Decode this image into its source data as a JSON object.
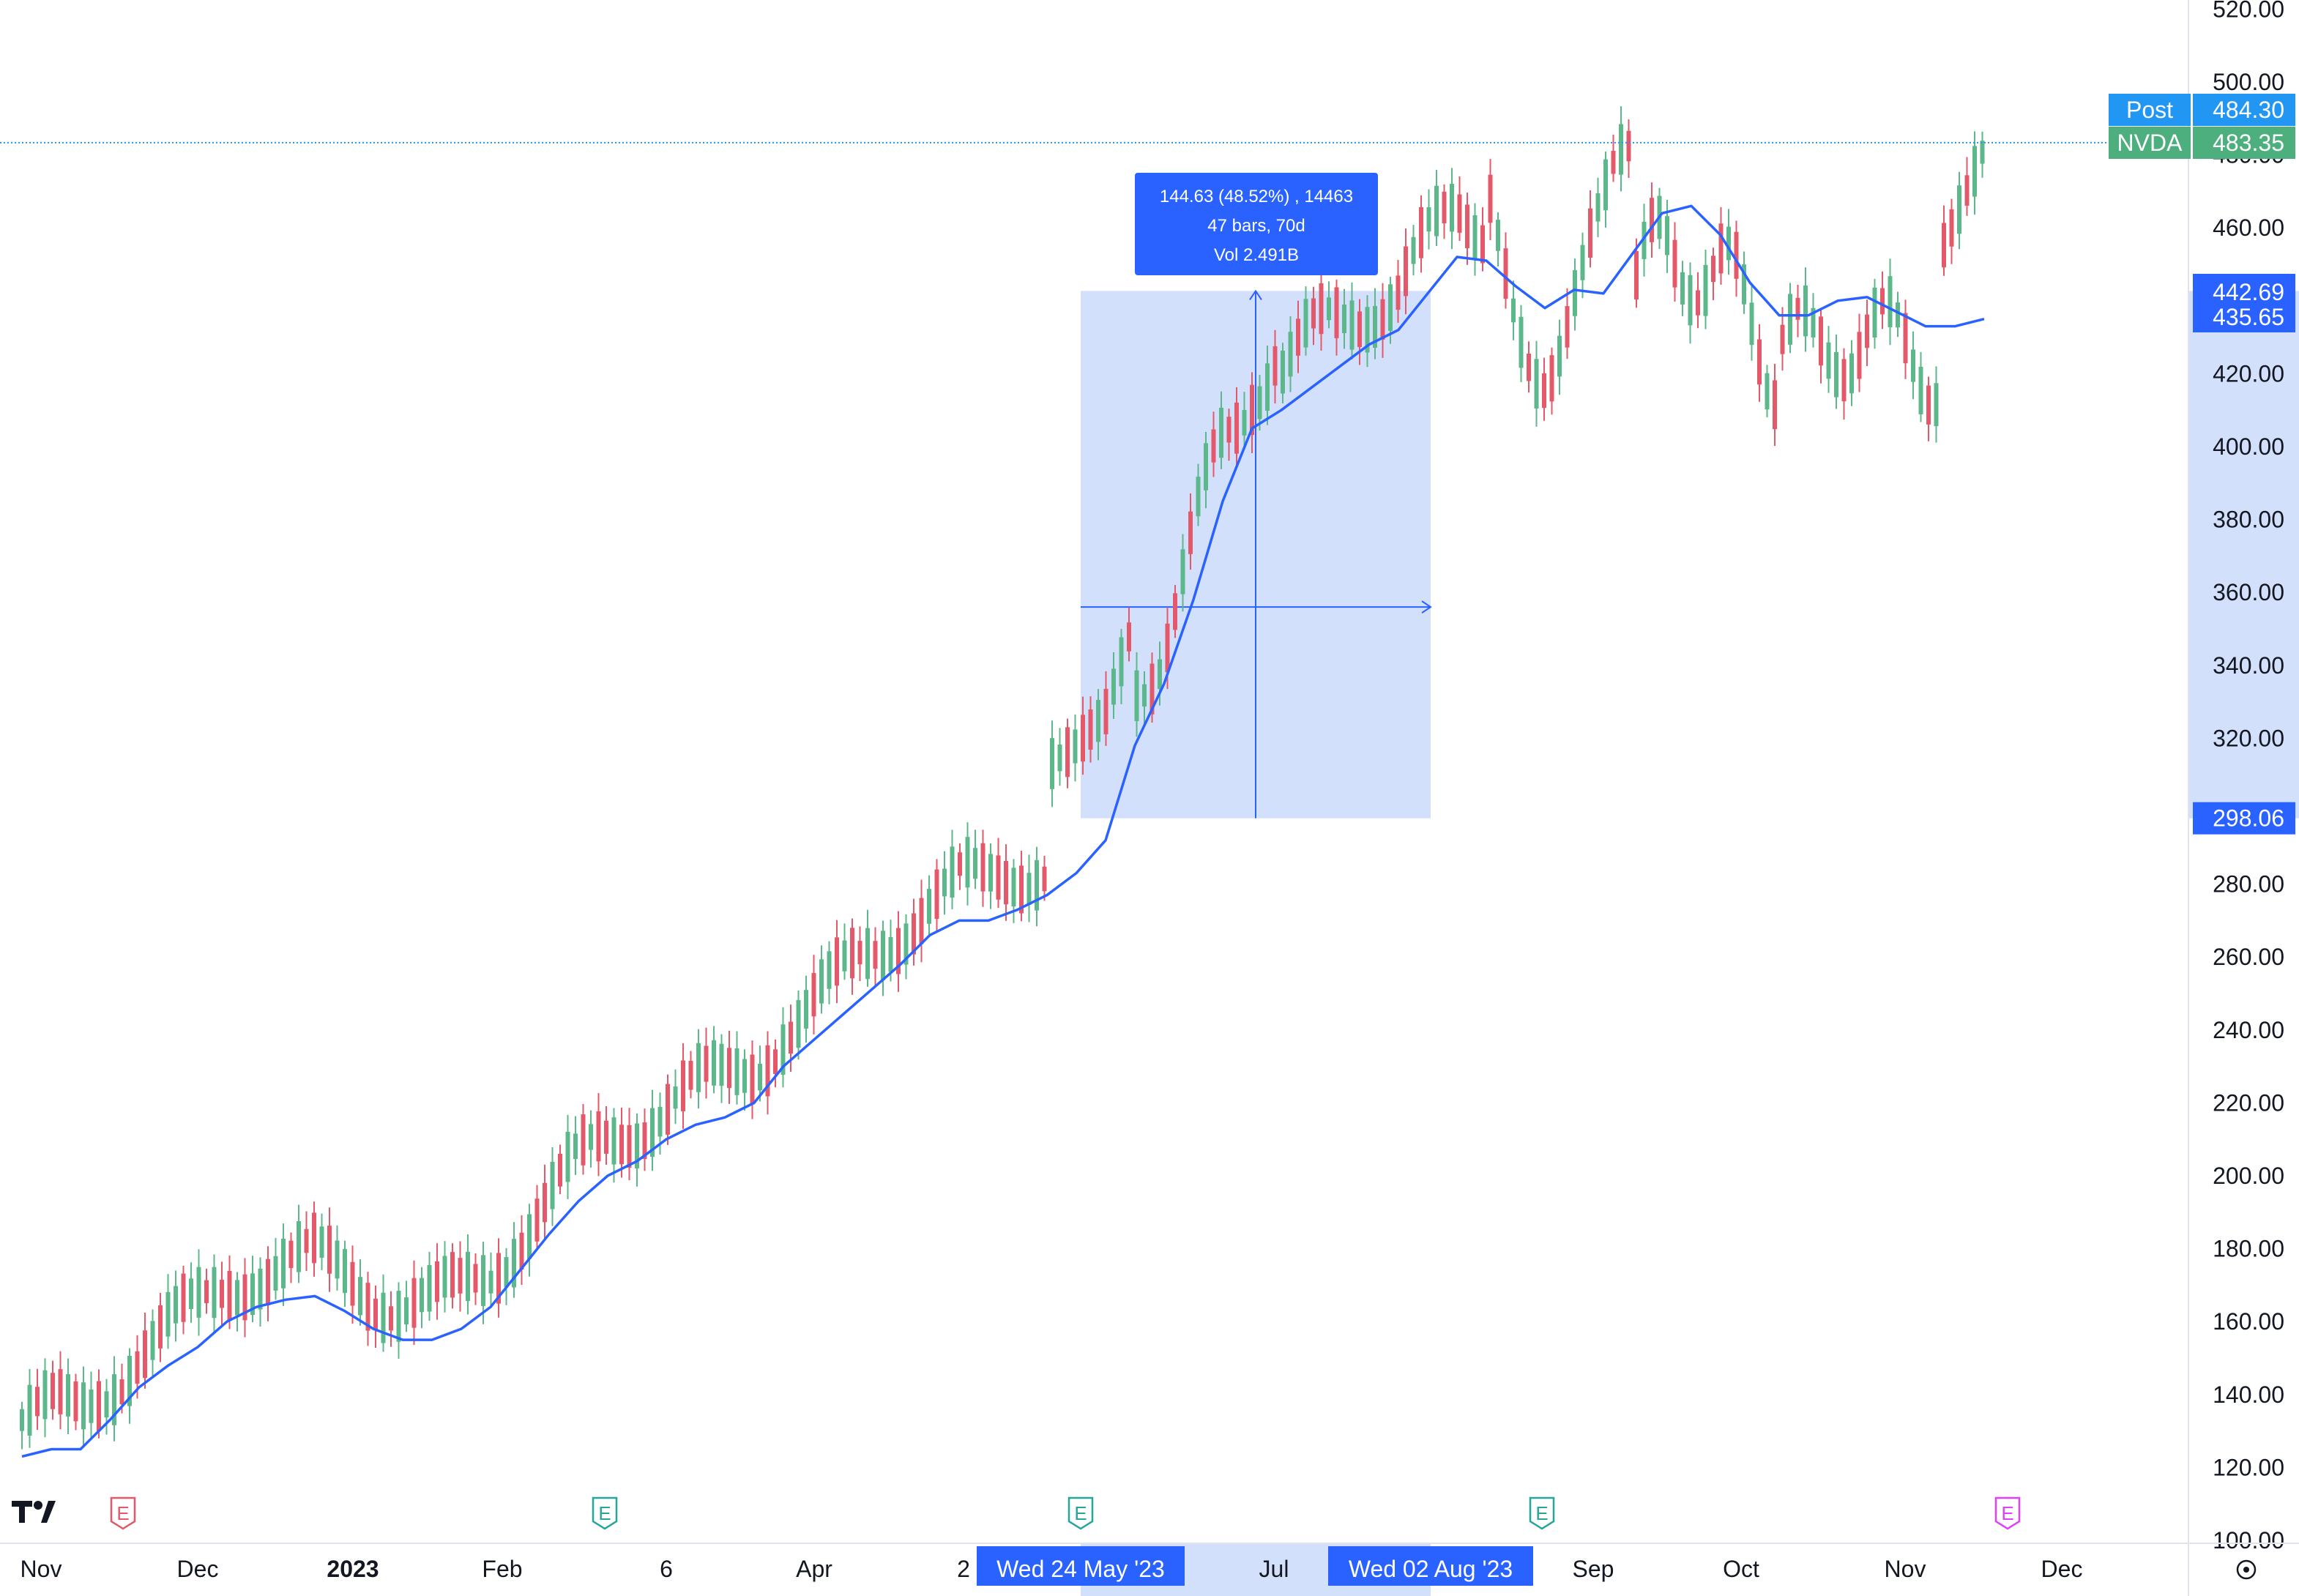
{
  "chart_data": {
    "type": "candlestick",
    "symbol": "NVDA",
    "ylim": [
      100,
      520
    ],
    "y_ticks": [
      "520.00",
      "500.00",
      "480.00",
      "460.00",
      "440.00",
      "420.00",
      "400.00",
      "380.00",
      "360.00",
      "340.00",
      "320.00",
      "300.00",
      "280.00",
      "260.00",
      "240.00",
      "220.00",
      "200.00",
      "180.00",
      "160.00",
      "140.00",
      "120.00",
      "100.00"
    ],
    "x_labels": [
      "Nov",
      "Dec",
      "2023",
      "Feb",
      "6",
      "Apr",
      "2",
      "Jul",
      "Sep",
      "Oct",
      "Nov",
      "Dec"
    ],
    "moving_average": [
      [
        0,
        123
      ],
      [
        20,
        125
      ],
      [
        40,
        125
      ],
      [
        60,
        133
      ],
      [
        80,
        142
      ],
      [
        100,
        148
      ],
      [
        120,
        153
      ],
      [
        140,
        160
      ],
      [
        160,
        164
      ],
      [
        180,
        166
      ],
      [
        200,
        167
      ],
      [
        220,
        163
      ],
      [
        240,
        158
      ],
      [
        260,
        155
      ],
      [
        280,
        155
      ],
      [
        300,
        158
      ],
      [
        320,
        164
      ],
      [
        340,
        174
      ],
      [
        360,
        184
      ],
      [
        380,
        193
      ],
      [
        400,
        200
      ],
      [
        420,
        204
      ],
      [
        440,
        210
      ],
      [
        460,
        214
      ],
      [
        480,
        216
      ],
      [
        500,
        220
      ],
      [
        520,
        230
      ],
      [
        540,
        237
      ],
      [
        560,
        244
      ],
      [
        580,
        251
      ],
      [
        600,
        258
      ],
      [
        620,
        266
      ],
      [
        640,
        270
      ],
      [
        660,
        270
      ],
      [
        680,
        273
      ],
      [
        700,
        277
      ],
      [
        720,
        283
      ],
      [
        740,
        292
      ],
      [
        760,
        318
      ],
      [
        780,
        335
      ],
      [
        800,
        358
      ],
      [
        820,
        385
      ],
      [
        840,
        405
      ],
      [
        860,
        410
      ],
      [
        880,
        416
      ],
      [
        900,
        422
      ],
      [
        920,
        428
      ],
      [
        940,
        432
      ],
      [
        960,
        442
      ],
      [
        980,
        452
      ],
      [
        1000,
        451
      ],
      [
        1020,
        444
      ],
      [
        1040,
        438
      ],
      [
        1060,
        443
      ],
      [
        1080,
        442
      ],
      [
        1100,
        453
      ],
      [
        1120,
        464
      ],
      [
        1140,
        466
      ],
      [
        1160,
        458
      ],
      [
        1180,
        445
      ],
      [
        1200,
        436
      ],
      [
        1220,
        436
      ],
      [
        1240,
        440
      ],
      [
        1260,
        441
      ],
      [
        1280,
        437
      ],
      [
        1300,
        433
      ],
      [
        1320,
        433
      ],
      [
        1340,
        435
      ]
    ],
    "measure": {
      "date_start": "Wed 24 May '23",
      "date_end": "Wed 02 Aug '23",
      "price_low": "298.06",
      "price_high": "442.69",
      "change": "144.63 (48.52%) , 14463",
      "bars": "47 bars, 70d",
      "volume": "Vol 2.491B"
    },
    "last_price": {
      "label": "NVDA",
      "value": "483.35"
    },
    "post_price": {
      "label": "Post",
      "value": "484.30"
    },
    "ma_value": "435.65",
    "colors": {
      "up": "#26a69a",
      "up_body": "#5cb88b",
      "down": "#e4596a",
      "ma": "#2962ff",
      "measure_fill": "#d3e0fb",
      "accent": "#2962ff",
      "last": "#4caf7d",
      "post": "#2196f3"
    }
  },
  "logo_text": "TV",
  "earnings_markers": [
    {
      "label": "E",
      "color": "#e4596a"
    },
    {
      "label": "E",
      "color": "#26a69a"
    },
    {
      "label": "E",
      "color": "#26a69a"
    },
    {
      "label": "E",
      "color": "#26a69a"
    },
    {
      "label": "E",
      "color": "#e040fb"
    }
  ],
  "settings_icon": "settings-icon"
}
